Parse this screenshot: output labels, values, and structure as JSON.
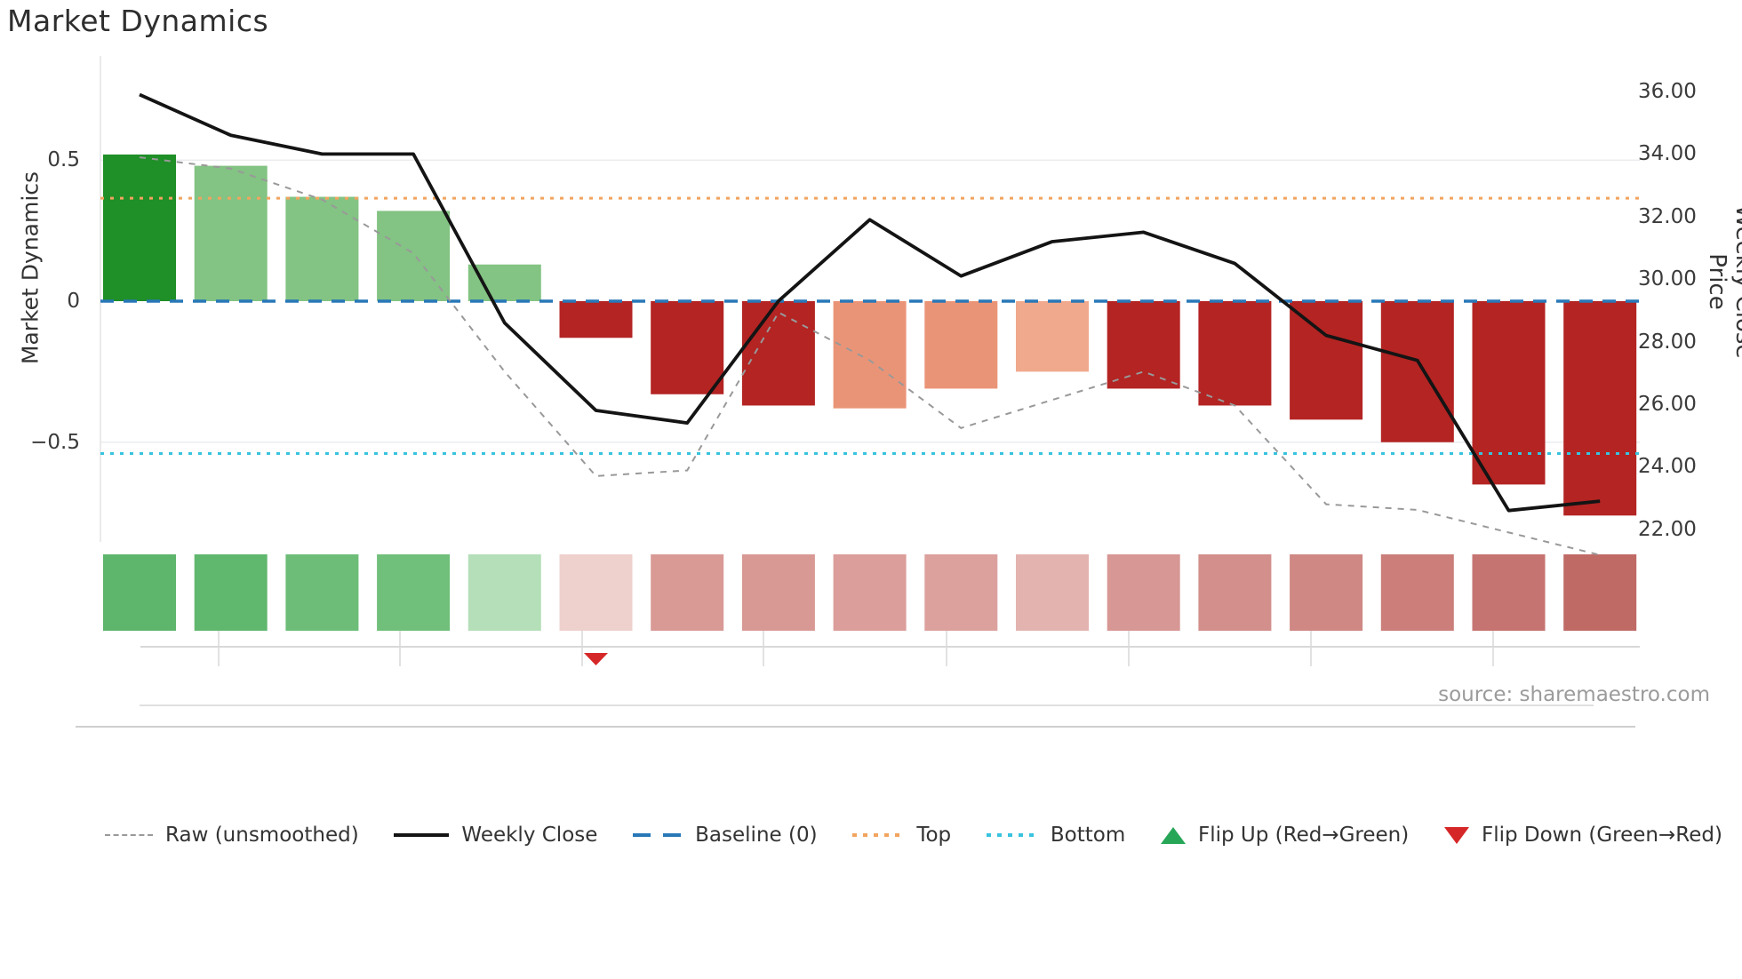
{
  "title": "Market Dynamics",
  "axes": {
    "left": {
      "title": "Market Dynamics",
      "ticks": [
        "0.5",
        "0",
        "−0.5"
      ],
      "tick_values": [
        0.5,
        0,
        -0.5
      ]
    },
    "right": {
      "title": "Weekly Close Price",
      "ticks": [
        "36.00",
        "34.00",
        "32.00",
        "30.00",
        "28.00",
        "26.00",
        "24.00",
        "22.00"
      ],
      "tick_values": [
        36,
        34,
        32,
        30,
        28,
        26,
        24,
        22
      ]
    }
  },
  "source": "source: sharemaestro.com",
  "legend": {
    "items": [
      {
        "label": "Raw (unsmoothed)",
        "color": "#999999"
      },
      {
        "label": "Weekly Close",
        "color": "#141414"
      },
      {
        "label": "Baseline (0)",
        "color": "#2878b8"
      },
      {
        "label": "Top",
        "color": "#f2a45f"
      },
      {
        "label": "Bottom",
        "color": "#38c3de"
      },
      {
        "label": "Flip Up (Red→Green)",
        "color": "#27a658"
      },
      {
        "label": "Flip Down (Green→Red)",
        "color": "#d62728"
      }
    ]
  },
  "chart_data": {
    "type": "combo",
    "x": [
      1,
      2,
      3,
      4,
      5,
      6,
      7,
      8,
      9,
      10,
      11,
      12,
      13,
      14,
      15,
      16,
      17
    ],
    "series": [
      {
        "name": "Market Dynamics (bars)",
        "type": "bar",
        "axis": "left",
        "values": [
          0.52,
          0.48,
          0.37,
          0.32,
          0.13,
          -0.13,
          -0.33,
          -0.37,
          -0.38,
          -0.31,
          -0.25,
          -0.31,
          -0.37,
          -0.42,
          -0.5,
          -0.65,
          -0.76
        ],
        "colors": [
          "#1f8f27",
          "#83c383",
          "#83c383",
          "#83c383",
          "#83c383",
          "#b32423",
          "#b32423",
          "#b32423",
          "#ea9477",
          "#ea9477",
          "#f0a98d",
          "#b32423",
          "#b32423",
          "#b32423",
          "#b32423",
          "#b32423",
          "#b32423"
        ]
      },
      {
        "name": "Raw (unsmoothed)",
        "type": "line",
        "style": "dashed",
        "axis": "left",
        "color": "#999999",
        "values": [
          0.51,
          0.47,
          0.36,
          0.17,
          -0.25,
          -0.62,
          -0.6,
          -0.04,
          -0.21,
          -0.45,
          -0.35,
          -0.25,
          -0.37,
          -0.72,
          -0.74,
          -0.82,
          -0.9
        ]
      },
      {
        "name": "Weekly Close",
        "type": "line",
        "style": "solid",
        "axis": "right",
        "color": "#141414",
        "values": [
          35.9,
          34.6,
          34.0,
          34.0,
          28.6,
          25.8,
          25.4,
          29.3,
          31.9,
          30.1,
          31.2,
          31.5,
          30.5,
          28.2,
          27.4,
          22.6,
          22.9
        ]
      }
    ],
    "reference_lines": [
      {
        "name": "Baseline (0)",
        "axis": "left",
        "value": 0,
        "color": "#2878b8",
        "style": "dashed"
      },
      {
        "name": "Top",
        "axis": "left",
        "value": 0.365,
        "color": "#f2a45f",
        "style": "dotted"
      },
      {
        "name": "Bottom",
        "axis": "left",
        "value": -0.54,
        "color": "#38c3de",
        "style": "dotted"
      }
    ],
    "heat_strip": {
      "colors": [
        "#5eb56c",
        "#60b76e",
        "#6dbd78",
        "#70bf7a",
        "#b4dfb8",
        "#eed0cc",
        "#d99a96",
        "#d89995",
        "#db9e9a",
        "#dca19d",
        "#e3b3af",
        "#d79794",
        "#d38f8b",
        "#cf8884",
        "#cb7e7a",
        "#c67471",
        "#c06a66"
      ]
    },
    "markers": [
      {
        "type": "flip_down",
        "index": 6,
        "color": "#d62728"
      }
    ],
    "ylim_left": [
      -0.87,
      0.87
    ],
    "ylim_right": [
      21.6,
      37.2
    ],
    "grid": "horizontal gridlines at +0.5 and -0.5"
  }
}
